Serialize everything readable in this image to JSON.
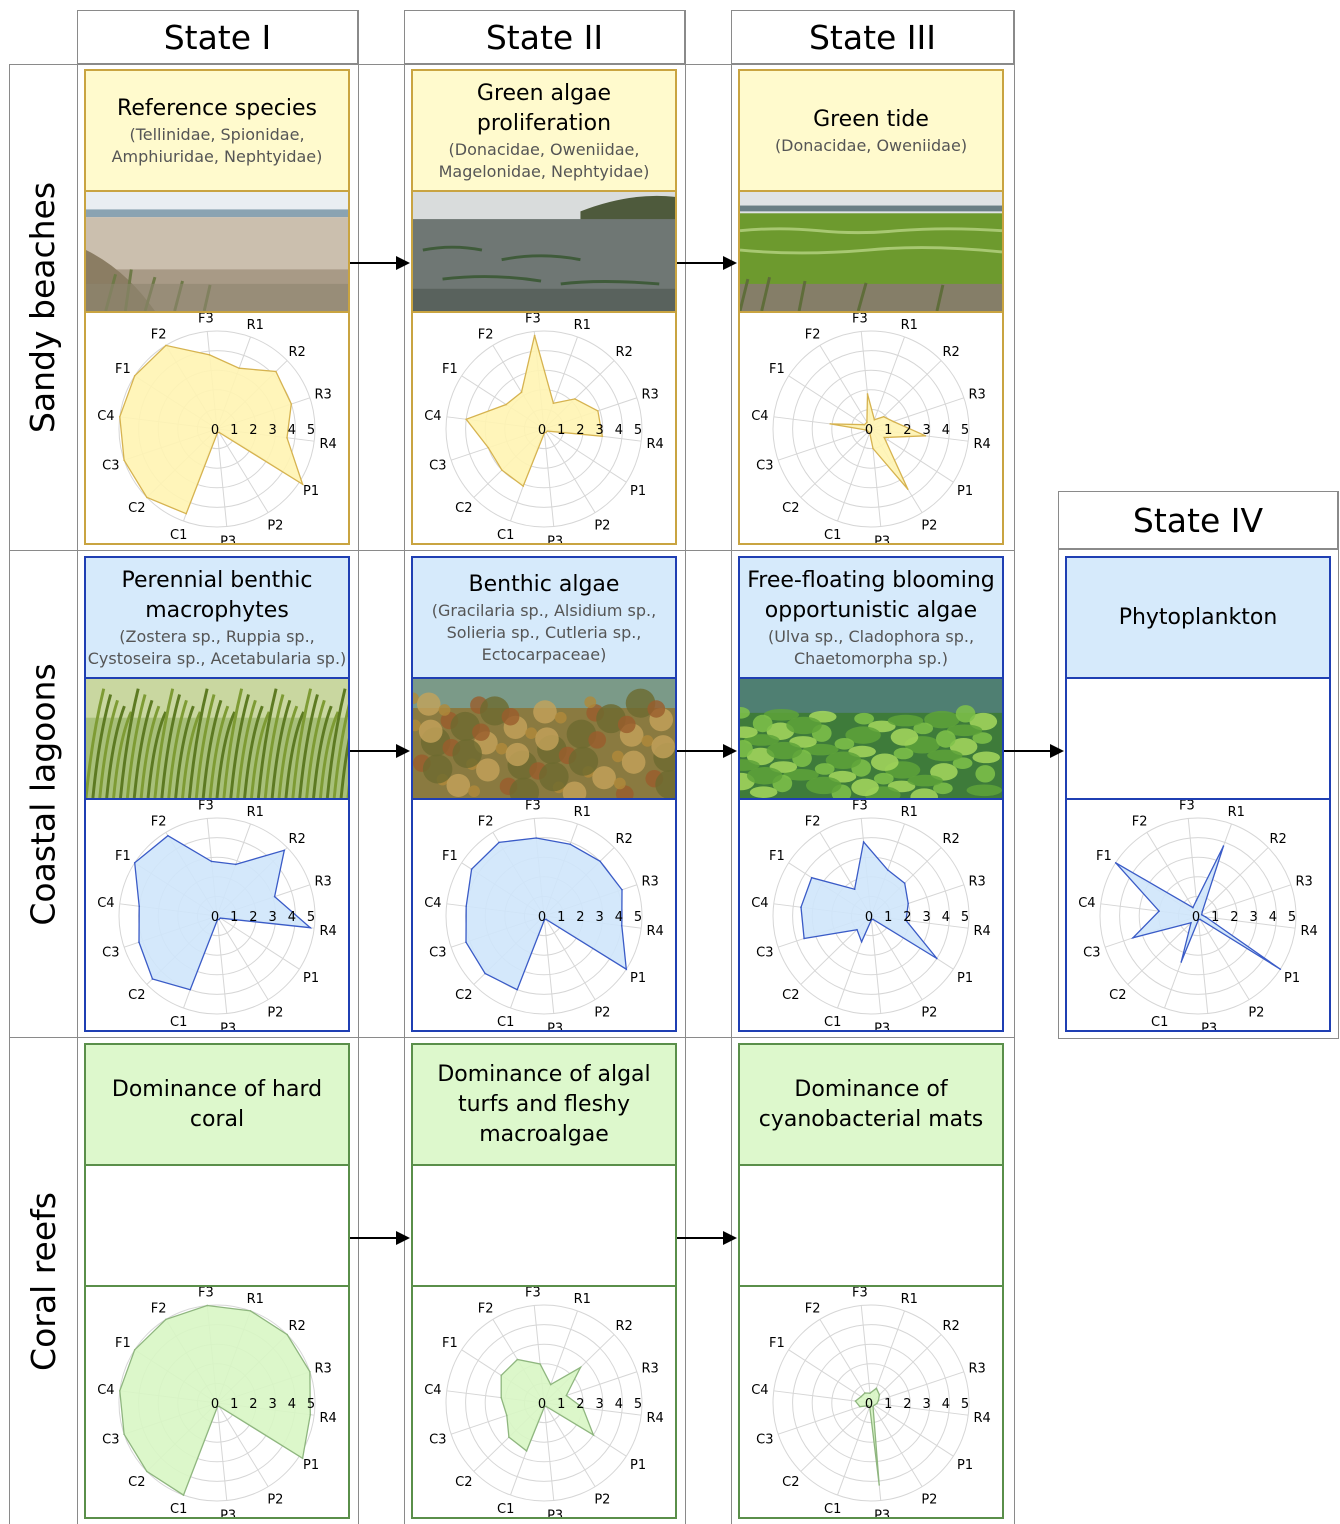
{
  "columns": [
    "State I",
    "State II",
    "State III",
    "State IV"
  ],
  "rows": [
    "Sandy beaches",
    "Coastal lagoons",
    "Coral reefs"
  ],
  "colors": {
    "sandy_title_bg": "#fffacd",
    "sandy_border": "#c9a441",
    "sandy_fill": "#fff4b3",
    "sandy_line": "#d6b350",
    "lagoon_title_bg": "#d6eafb",
    "lagoon_border": "#1f3fb3",
    "lagoon_fill": "#cfe6fb",
    "lagoon_line": "#3a5bc7",
    "coral_title_bg": "#ddf8cc",
    "coral_border": "#5a8f4a",
    "coral_fill": "#d8f6c4",
    "coral_line": "#8fb67f"
  },
  "cells": [
    {
      "row": 0,
      "col": 0,
      "title": "Reference species",
      "subtitle": "(Tellinidae, Spionidae, Amphiuridae, Nephtyidae)",
      "photo": "beach"
    },
    {
      "row": 0,
      "col": 1,
      "title": "Green algae proliferation",
      "subtitle": "(Donacidae, Oweniidae, Magelonidae, Nephtyidae)",
      "photo": "beach-algae"
    },
    {
      "row": 0,
      "col": 2,
      "title": "Green tide",
      "subtitle": "(Donacidae, Oweniidae)",
      "photo": "green-tide"
    },
    {
      "row": 1,
      "col": 0,
      "title": "Perennial benthic macrophytes",
      "subtitle": "(Zostera sp., Ruppia sp., Cystoseira sp., Acetabularia sp.)",
      "photo": "seagrass"
    },
    {
      "row": 1,
      "col": 1,
      "title": "Benthic algae",
      "subtitle": "(Gracilaria sp., Alsidium sp., Solieria sp., Cutleria sp., Ectocarpaceae)",
      "photo": "benthic-algae"
    },
    {
      "row": 1,
      "col": 2,
      "title": "Free-floating blooming opportunistic algae",
      "subtitle": "(Ulva sp., Cladophora sp., Chaetomorpha sp.)",
      "photo": "ulva"
    },
    {
      "row": 1,
      "col": 3,
      "title": "Phytoplankton",
      "subtitle": "",
      "photo": "none"
    },
    {
      "row": 2,
      "col": 0,
      "title": "Dominance of hard coral",
      "subtitle": "",
      "photo": "none"
    },
    {
      "row": 2,
      "col": 1,
      "title": "Dominance of algal turfs and fleshy macroalgae",
      "subtitle": "",
      "photo": "none"
    },
    {
      "row": 2,
      "col": 2,
      "title": "Dominance of cyanobacterial mats",
      "subtitle": "",
      "photo": "none"
    }
  ],
  "chart_data": [
    {
      "type": "radar",
      "row": 0,
      "col": 0,
      "axes": [
        "R1",
        "R2",
        "R3",
        "R4",
        "P1",
        "P2",
        "P3",
        "C1",
        "C2",
        "C3",
        "C4",
        "F1",
        "F2",
        "F3"
      ],
      "radial_ticks": [
        "0",
        "1",
        "2",
        "3",
        "4",
        "5"
      ],
      "rmax": 5,
      "values": [
        3.3,
        4.2,
        4.0,
        3.6,
        5.2,
        0.2,
        0.2,
        4.6,
        5.0,
        5.0,
        5.0,
        5.0,
        5.0,
        3.8
      ]
    },
    {
      "type": "radar",
      "row": 0,
      "col": 1,
      "axes": [
        "R1",
        "R2",
        "R3",
        "R4",
        "P1",
        "P2",
        "P3",
        "C1",
        "C2",
        "C3",
        "C4",
        "F1",
        "F2",
        "F3"
      ],
      "radial_ticks": [
        "0",
        "1",
        "2",
        "3",
        "4",
        "5"
      ],
      "rmax": 5,
      "values": [
        1.4,
        2.2,
        2.9,
        3.0,
        0.2,
        0.2,
        0.2,
        3.1,
        3.0,
        3.0,
        4.0,
        2.3,
        2.2,
        4.8
      ]
    },
    {
      "type": "radar",
      "row": 0,
      "col": 2,
      "axes": [
        "R1",
        "R2",
        "R3",
        "R4",
        "P1",
        "P2",
        "P3",
        "C1",
        "C2",
        "C3",
        "C4",
        "F1",
        "F2",
        "F3"
      ],
      "radial_ticks": [
        "0",
        "1",
        "2",
        "3",
        "4",
        "5"
      ],
      "rmax": 5,
      "values": [
        0.5,
        0.9,
        1.2,
        2.8,
        0.8,
        3.6,
        1.0,
        0.2,
        0.2,
        0.2,
        2.1,
        0.4,
        0.4,
        1.8
      ]
    },
    {
      "type": "radar",
      "row": 1,
      "col": 0,
      "axes": [
        "R1",
        "R2",
        "R3",
        "R4",
        "P1",
        "P2",
        "P3",
        "C1",
        "C2",
        "C3",
        "C4",
        "F1",
        "F2",
        "F3"
      ],
      "radial_ticks": [
        "0",
        "1",
        "2",
        "3",
        "4",
        "5"
      ],
      "rmax": 5,
      "values": [
        2.8,
        4.8,
        3.1,
        4.8,
        0.2,
        0.2,
        0.2,
        4.0,
        4.6,
        4.2,
        4.0,
        5.0,
        4.8,
        2.8
      ]
    },
    {
      "type": "radar",
      "row": 1,
      "col": 1,
      "axes": [
        "R1",
        "R2",
        "R3",
        "R4",
        "P1",
        "P2",
        "P3",
        "C1",
        "C2",
        "C3",
        "C4",
        "F1",
        "F2",
        "F3"
      ],
      "radial_ticks": [
        "0",
        "1",
        "2",
        "3",
        "4",
        "5"
      ],
      "rmax": 5,
      "values": [
        3.9,
        4.0,
        4.2,
        4.0,
        5.0,
        0.2,
        0.2,
        4.0,
        4.2,
        4.2,
        4.0,
        4.4,
        4.4,
        4.0
      ]
    },
    {
      "type": "radar",
      "row": 1,
      "col": 2,
      "axes": [
        "R1",
        "R2",
        "R3",
        "R4",
        "P1",
        "P2",
        "P3",
        "C1",
        "C2",
        "C3",
        "C4",
        "F1",
        "F2",
        "F3"
      ],
      "radial_ticks": [
        "0",
        "1",
        "2",
        "3",
        "4",
        "5"
      ],
      "rmax": 5,
      "values": [
        2.5,
        2.4,
        2.0,
        1.8,
        4.0,
        0.2,
        0.2,
        1.4,
        1.0,
        3.6,
        3.6,
        3.6,
        1.6,
        3.8
      ]
    },
    {
      "type": "radar",
      "row": 1,
      "col": 3,
      "axes": [
        "R1",
        "R2",
        "R3",
        "R4",
        "P1",
        "P2",
        "P3",
        "C1",
        "C2",
        "C3",
        "C4",
        "F1",
        "F2",
        "F3"
      ],
      "radial_ticks": [
        "0",
        "1",
        "2",
        "3",
        "4",
        "5"
      ],
      "rmax": 5,
      "values": [
        3.8,
        0.3,
        0.2,
        0.4,
        5.0,
        0.2,
        0.2,
        2.5,
        0.5,
        3.5,
        2.0,
        5.0,
        0.5,
        0.8
      ]
    },
    {
      "type": "radar",
      "row": 2,
      "col": 0,
      "axes": [
        "R1",
        "R2",
        "R3",
        "R4",
        "P1",
        "P2",
        "P3",
        "C1",
        "C2",
        "C3",
        "C4",
        "F1",
        "F2",
        "F3"
      ],
      "radial_ticks": [
        "0",
        "1",
        "2",
        "3",
        "4",
        "5"
      ],
      "rmax": 5,
      "values": [
        5.0,
        5.0,
        5.0,
        4.8,
        5.2,
        0.2,
        0.2,
        5.0,
        5.0,
        5.0,
        5.0,
        5.0,
        5.0,
        5.0
      ]
    },
    {
      "type": "radar",
      "row": 2,
      "col": 1,
      "axes": [
        "R1",
        "R2",
        "R3",
        "R4",
        "P1",
        "P2",
        "P3",
        "C1",
        "C2",
        "C3",
        "C4",
        "F1",
        "F2",
        "F3"
      ],
      "radial_ticks": [
        "0",
        "1",
        "2",
        "3",
        "4",
        "5"
      ],
      "rmax": 5,
      "values": [
        1.0,
        2.6,
        1.2,
        2.0,
        3.0,
        0.2,
        0.2,
        2.6,
        2.5,
        2.0,
        2.2,
        2.6,
        2.6,
        2.0
      ]
    },
    {
      "type": "radar",
      "row": 2,
      "col": 2,
      "axes": [
        "R1",
        "R2",
        "R3",
        "R4",
        "P1",
        "P2",
        "P3",
        "C1",
        "C2",
        "C3",
        "C4",
        "F1",
        "F2",
        "F3"
      ],
      "radial_ticks": [
        "0",
        "1",
        "2",
        "3",
        "4",
        "5"
      ],
      "rmax": 5,
      "values": [
        0.8,
        0.6,
        0.4,
        0.3,
        0.2,
        0.2,
        4.2,
        0.2,
        0.2,
        0.6,
        0.8,
        0.6,
        0.6,
        0.5
      ]
    }
  ]
}
